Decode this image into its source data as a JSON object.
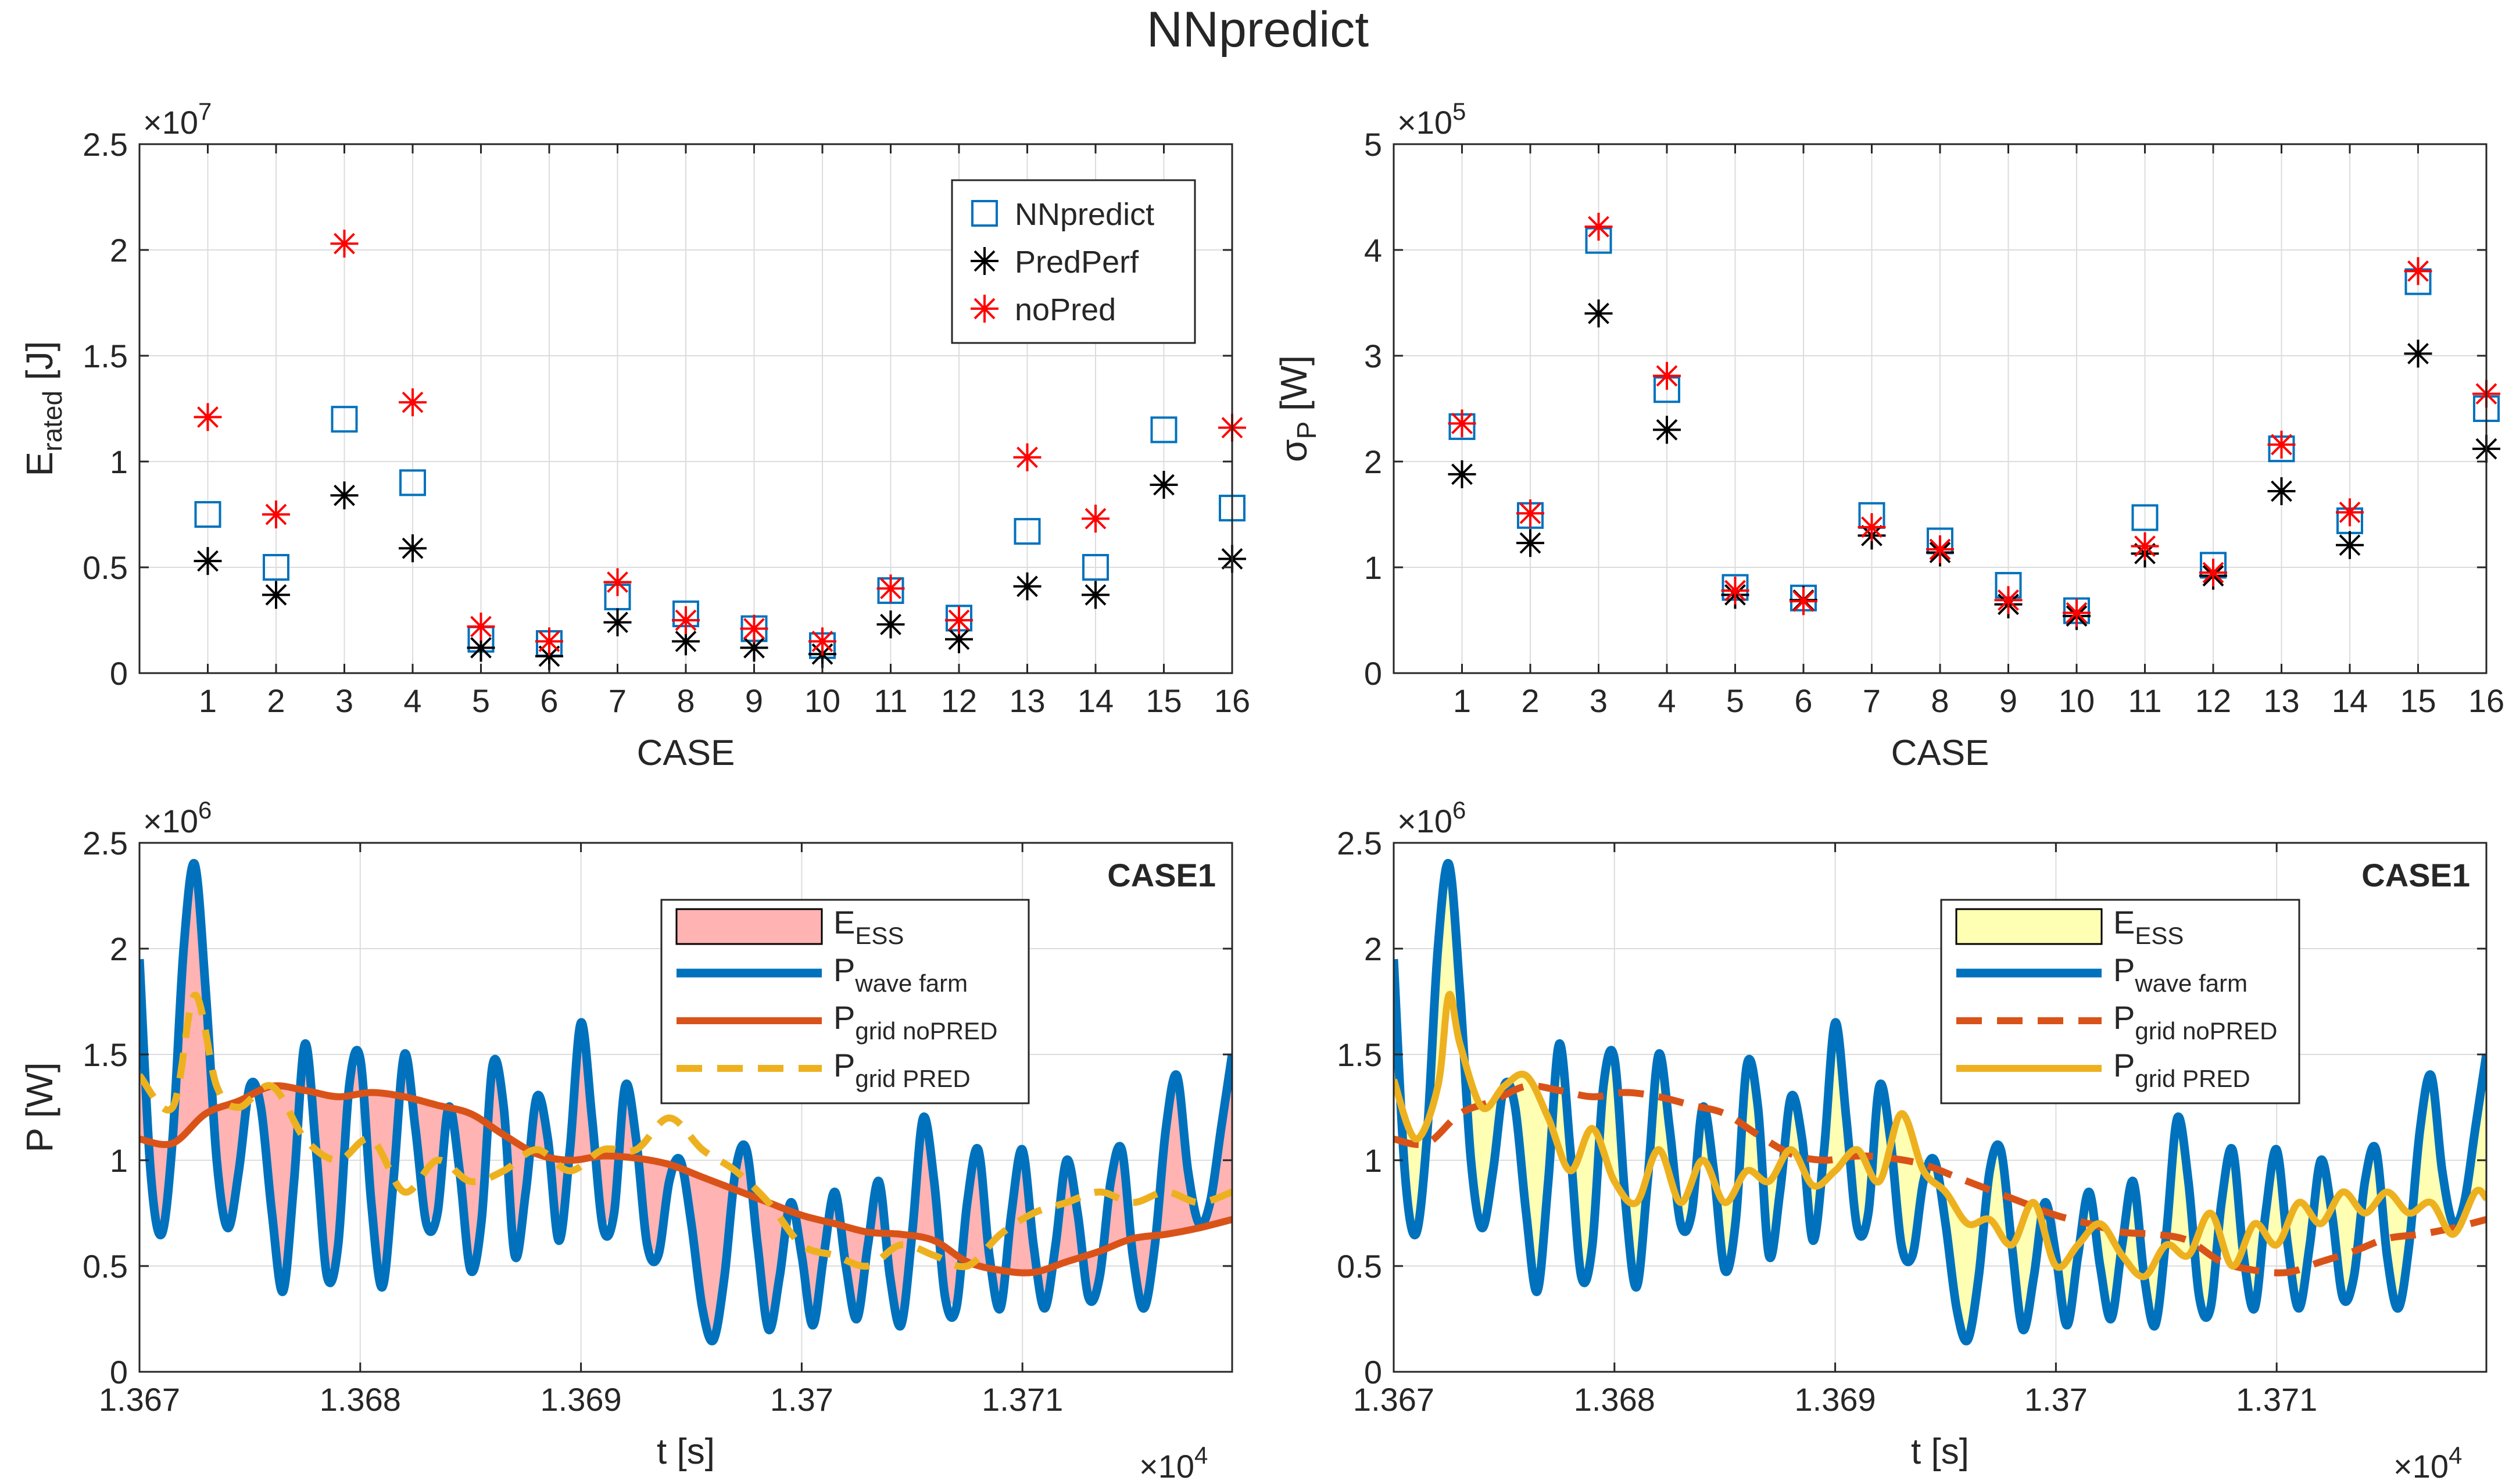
{
  "figure": {
    "title": "NNpredict"
  },
  "colors": {
    "nnpredict": "#0072BD",
    "predperf": "#000000",
    "nopred": "#FF0000",
    "wave": "#0072BD",
    "grid_nopred": "#D95319",
    "grid_pred": "#EDB120",
    "ess_fill_left": "#FFB3B3",
    "ess_fill_right": "#FFFFB3",
    "axis": "#262626",
    "grid": "#DCDCDC"
  },
  "chart_data": [
    {
      "id": "erated",
      "type": "scatter",
      "title": "",
      "xlabel": "CASE",
      "ylabel_main": "E",
      "ylabel_sub": "rated",
      "ylabel_unit": " [J]",
      "exponent_label": "×10",
      "exponent_power": "7",
      "xlim": [
        0,
        16
      ],
      "ylim": [
        0,
        2.5
      ],
      "x_ticks": [
        1,
        2,
        3,
        4,
        5,
        6,
        7,
        8,
        9,
        10,
        11,
        12,
        13,
        14,
        15,
        16
      ],
      "x_tick_labels": [
        "1",
        "2",
        "3",
        "4",
        "5",
        "6",
        "7",
        "8",
        "9",
        "10",
        "11",
        "12",
        "13",
        "14",
        "15",
        "16"
      ],
      "y_ticks": [
        0,
        0.5,
        1,
        1.5,
        2,
        2.5
      ],
      "y_tick_labels": [
        "0",
        "0.5",
        "1",
        "1.5",
        "2",
        "2.5"
      ],
      "legend_position": "top-right",
      "series": [
        {
          "name": "NNpredict",
          "marker": "square",
          "color_key": "nnpredict",
          "values": [
            0.75,
            0.5,
            1.2,
            0.9,
            0.16,
            0.14,
            0.36,
            0.28,
            0.21,
            0.13,
            0.39,
            0.26,
            0.67,
            0.5,
            1.15,
            0.78
          ]
        },
        {
          "name": "PredPerf",
          "marker": "asterisk",
          "color_key": "predperf",
          "values": [
            0.53,
            0.37,
            0.84,
            0.59,
            0.12,
            0.08,
            0.24,
            0.15,
            0.12,
            0.09,
            0.23,
            0.16,
            0.41,
            0.37,
            0.89,
            0.54
          ]
        },
        {
          "name": "noPred",
          "marker": "asterisk",
          "color_key": "nopred",
          "values": [
            1.21,
            0.75,
            2.03,
            1.28,
            0.22,
            0.15,
            0.43,
            0.25,
            0.21,
            0.15,
            0.4,
            0.25,
            1.02,
            0.73,
            null,
            1.16
          ]
        }
      ]
    },
    {
      "id": "sigmap",
      "type": "scatter",
      "title": "",
      "xlabel": "CASE",
      "ylabel_main": "σ",
      "ylabel_sub": "P",
      "ylabel_unit": " [W]",
      "exponent_label": "×10",
      "exponent_power": "5",
      "xlim": [
        0,
        16
      ],
      "ylim": [
        0,
        5
      ],
      "x_ticks": [
        1,
        2,
        3,
        4,
        5,
        6,
        7,
        8,
        9,
        10,
        11,
        12,
        13,
        14,
        15,
        16
      ],
      "x_tick_labels": [
        "1",
        "2",
        "3",
        "4",
        "5",
        "6",
        "7",
        "8",
        "9",
        "10",
        "11",
        "12",
        "13",
        "14",
        "15",
        "16"
      ],
      "y_ticks": [
        0,
        1,
        2,
        3,
        4,
        5
      ],
      "y_tick_labels": [
        "0",
        "1",
        "2",
        "3",
        "4",
        "5"
      ],
      "series": [
        {
          "name": "NNpredict",
          "marker": "square",
          "color_key": "nnpredict",
          "values": [
            2.33,
            1.49,
            4.09,
            2.68,
            0.81,
            0.71,
            1.49,
            1.25,
            0.83,
            0.59,
            1.47,
            1.02,
            2.12,
            1.44,
            3.7,
            2.5
          ]
        },
        {
          "name": "PredPerf",
          "marker": "asterisk",
          "color_key": "predperf",
          "values": [
            1.88,
            1.23,
            3.4,
            2.3,
            0.74,
            0.69,
            1.3,
            1.14,
            0.65,
            0.54,
            1.13,
            0.92,
            1.72,
            1.21,
            3.02,
            2.12
          ]
        },
        {
          "name": "noPred",
          "marker": "asterisk",
          "color_key": "nopred",
          "values": [
            2.36,
            1.51,
            4.22,
            2.81,
            0.78,
            0.68,
            1.38,
            1.17,
            0.69,
            0.57,
            1.2,
            0.95,
            2.16,
            1.52,
            3.8,
            2.64
          ]
        }
      ]
    },
    {
      "id": "power_left",
      "type": "line",
      "annotation": "CASE1",
      "xlabel": "t [s]",
      "ylabel": "P [W]",
      "exponent_label": "×10",
      "exponent_power": "6",
      "x_exponent_label": "×10",
      "x_exponent_power": "4",
      "xlim": [
        1.367,
        1.37195
      ],
      "ylim": [
        0,
        2.5
      ],
      "x_ticks": [
        1.367,
        1.368,
        1.369,
        1.37,
        1.371
      ],
      "x_tick_labels": [
        "1.367",
        "1.368",
        "1.369",
        "1.37",
        "1.371"
      ],
      "y_ticks": [
        0,
        0.5,
        1,
        1.5,
        2,
        2.5
      ],
      "y_tick_labels": [
        "0",
        "0.5",
        "1",
        "1.5",
        "2",
        "2.5"
      ],
      "fill": {
        "name_main": "E",
        "name_sub": "ESS",
        "color_key": "ess_fill_left",
        "between": [
          "wave",
          "grid_nopred"
        ]
      },
      "series": [
        {
          "id": "wave",
          "name_main": "P",
          "name_sub": "wave farm",
          "color_key": "wave",
          "style": "solid",
          "x": [
            1.367,
            1.36705,
            1.3671,
            1.36715,
            1.3672,
            1.36725,
            1.3673,
            1.36735,
            1.3674,
            1.36745,
            1.3675,
            1.36755,
            1.3676,
            1.36765,
            1.3677,
            1.36775,
            1.3678,
            1.36785,
            1.3679,
            1.36795,
            1.368,
            1.36805,
            1.3681,
            1.36815,
            1.3682,
            1.36825,
            1.3683,
            1.36835,
            1.3684,
            1.36845,
            1.3685,
            1.36855,
            1.3686,
            1.36865,
            1.3687,
            1.36875,
            1.3688,
            1.36885,
            1.3689,
            1.36895,
            1.369,
            1.36905,
            1.3691,
            1.36915,
            1.3692,
            1.36925,
            1.3693,
            1.36935,
            1.3694,
            1.36945,
            1.3695,
            1.36955,
            1.3696,
            1.36965,
            1.3697,
            1.36975,
            1.3698,
            1.36985,
            1.3699,
            1.36995,
            1.37,
            1.37005,
            1.3701,
            1.37015,
            1.3702,
            1.37025,
            1.3703,
            1.37035,
            1.3704,
            1.37045,
            1.3705,
            1.37055,
            1.3706,
            1.37065,
            1.3707,
            1.37075,
            1.3708,
            1.37085,
            1.3709,
            1.37095,
            1.371,
            1.37105,
            1.3711,
            1.37115,
            1.3712,
            1.37125,
            1.3713,
            1.37135,
            1.3714,
            1.37145,
            1.3715,
            1.37155,
            1.3716,
            1.37165,
            1.3717,
            1.37175,
            1.3718,
            1.37185,
            1.3719,
            1.37195
          ],
          "y": [
            1.95,
            0.95,
            0.65,
            1.1,
            2.0,
            2.4,
            1.8,
            1.0,
            0.68,
            0.95,
            1.35,
            1.25,
            0.75,
            0.38,
            0.9,
            1.55,
            1.05,
            0.45,
            0.6,
            1.35,
            1.48,
            0.8,
            0.4,
            0.9,
            1.5,
            1.15,
            0.7,
            0.75,
            1.25,
            0.95,
            0.48,
            0.72,
            1.45,
            1.25,
            0.55,
            0.85,
            1.3,
            1.1,
            0.62,
            1.05,
            1.65,
            1.2,
            0.68,
            0.75,
            1.35,
            1.1,
            0.6,
            0.55,
            0.9,
            1.0,
            0.7,
            0.3,
            0.15,
            0.45,
            0.95,
            1.05,
            0.6,
            0.2,
            0.45,
            0.8,
            0.55,
            0.22,
            0.55,
            0.85,
            0.5,
            0.25,
            0.6,
            0.9,
            0.45,
            0.22,
            0.65,
            1.2,
            0.9,
            0.35,
            0.3,
            0.8,
            1.05,
            0.55,
            0.3,
            0.75,
            1.05,
            0.6,
            0.3,
            0.6,
            1.0,
            0.75,
            0.35,
            0.45,
            0.9,
            1.05,
            0.55,
            0.3,
            0.6,
            1.15,
            1.4,
            0.95,
            0.7,
            0.8,
            1.15,
            1.5
          ]
        },
        {
          "id": "grid_nopred",
          "name_main": "P",
          "name_sub": "grid noPRED",
          "color_key": "grid_nopred",
          "style": "solid",
          "x": [
            1.367,
            1.36715,
            1.3673,
            1.36745,
            1.3676,
            1.36775,
            1.3679,
            1.36805,
            1.3682,
            1.36835,
            1.3685,
            1.36865,
            1.3688,
            1.36895,
            1.3691,
            1.36925,
            1.3694,
            1.36955,
            1.3697,
            1.36985,
            1.37,
            1.37015,
            1.3703,
            1.37045,
            1.3706,
            1.37075,
            1.3709,
            1.37105,
            1.3712,
            1.37135,
            1.3715,
            1.37165,
            1.3718,
            1.37195
          ],
          "y": [
            1.1,
            1.08,
            1.22,
            1.28,
            1.35,
            1.33,
            1.3,
            1.32,
            1.3,
            1.26,
            1.22,
            1.12,
            1.03,
            1.0,
            1.02,
            1.01,
            0.98,
            0.92,
            0.86,
            0.8,
            0.74,
            0.7,
            0.66,
            0.65,
            0.62,
            0.52,
            0.48,
            0.47,
            0.52,
            0.57,
            0.63,
            0.65,
            0.68,
            0.72
          ]
        },
        {
          "id": "grid_pred",
          "name_main": "P",
          "name_sub": "grid PRED",
          "color_key": "grid_pred",
          "style": "dashed",
          "x": [
            1.367,
            1.36715,
            1.36725,
            1.36735,
            1.36745,
            1.3676,
            1.36775,
            1.3679,
            1.36805,
            1.3682,
            1.36835,
            1.3685,
            1.36865,
            1.3688,
            1.36895,
            1.3691,
            1.36925,
            1.3694,
            1.36955,
            1.3697,
            1.36985,
            1.37,
            1.37015,
            1.3703,
            1.37045,
            1.3706,
            1.37075,
            1.3709,
            1.37105,
            1.3712,
            1.37135,
            1.3715,
            1.37165,
            1.3718,
            1.37195
          ],
          "y": [
            1.4,
            1.25,
            1.78,
            1.35,
            1.25,
            1.35,
            1.1,
            1.0,
            1.1,
            0.85,
            1.0,
            0.9,
            0.95,
            1.05,
            0.95,
            1.05,
            1.05,
            1.2,
            1.05,
            0.95,
            0.8,
            0.6,
            0.55,
            0.5,
            0.6,
            0.55,
            0.5,
            0.65,
            0.75,
            0.8,
            0.85,
            0.8,
            0.85,
            0.8,
            0.85
          ]
        }
      ]
    },
    {
      "id": "power_right",
      "type": "line",
      "annotation": "CASE1",
      "xlabel": "t [s]",
      "ylabel": "",
      "exponent_label": "×10",
      "exponent_power": "6",
      "x_exponent_label": "×10",
      "x_exponent_power": "4",
      "xlim": [
        1.367,
        1.37195
      ],
      "ylim": [
        0,
        2.5
      ],
      "x_ticks": [
        1.367,
        1.368,
        1.369,
        1.37,
        1.371
      ],
      "x_tick_labels": [
        "1.367",
        "1.368",
        "1.369",
        "1.37",
        "1.371"
      ],
      "y_ticks": [
        0,
        0.5,
        1,
        1.5,
        2,
        2.5
      ],
      "y_tick_labels": [
        "0",
        "0.5",
        "1",
        "1.5",
        "2",
        "2.5"
      ],
      "fill": {
        "name_main": "E",
        "name_sub": "ESS",
        "color_key": "ess_fill_right",
        "between": [
          "wave",
          "grid_pred"
        ]
      },
      "series": [
        {
          "id": "wave",
          "name_main": "P",
          "name_sub": "wave farm",
          "color_key": "wave",
          "style": "solid",
          "same_as": "power_left.wave"
        },
        {
          "id": "grid_nopred",
          "name_main": "P",
          "name_sub": "grid noPRED",
          "color_key": "grid_nopred",
          "style": "dashed",
          "same_as": "power_left.grid_nopred"
        },
        {
          "id": "grid_pred",
          "name_main": "P",
          "name_sub": "grid PRED",
          "color_key": "grid_pred",
          "style": "solid",
          "x": [
            1.367,
            1.3671,
            1.3672,
            1.36725,
            1.3673,
            1.3674,
            1.3675,
            1.3676,
            1.3677,
            1.3678,
            1.3679,
            1.368,
            1.3681,
            1.3682,
            1.3683,
            1.3684,
            1.3685,
            1.3686,
            1.3687,
            1.3688,
            1.3689,
            1.369,
            1.3691,
            1.3692,
            1.3693,
            1.3694,
            1.3695,
            1.3696,
            1.3697,
            1.3698,
            1.3699,
            1.37,
            1.3701,
            1.3702,
            1.3703,
            1.3704,
            1.3705,
            1.3706,
            1.3707,
            1.3708,
            1.3709,
            1.371,
            1.3711,
            1.3712,
            1.3713,
            1.3714,
            1.3715,
            1.3716,
            1.3717,
            1.3718,
            1.3719,
            1.37195
          ],
          "y": [
            1.38,
            1.1,
            1.35,
            1.78,
            1.55,
            1.25,
            1.35,
            1.4,
            1.2,
            0.95,
            1.15,
            0.9,
            0.8,
            1.05,
            0.8,
            1.0,
            0.8,
            0.95,
            0.9,
            1.05,
            0.88,
            0.95,
            1.05,
            0.9,
            1.22,
            0.95,
            0.85,
            0.7,
            0.72,
            0.6,
            0.8,
            0.5,
            0.6,
            0.7,
            0.55,
            0.45,
            0.6,
            0.55,
            0.75,
            0.5,
            0.7,
            0.6,
            0.8,
            0.7,
            0.85,
            0.75,
            0.85,
            0.75,
            0.8,
            0.65,
            0.85,
            0.82
          ]
        }
      ]
    }
  ]
}
